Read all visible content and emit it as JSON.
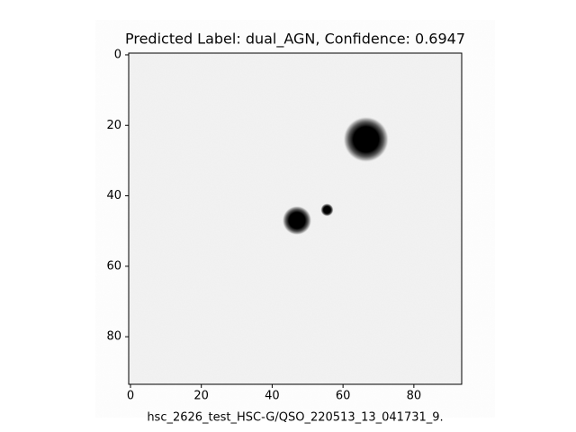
{
  "chart_data": {
    "type": "image",
    "title": "Predicted Label: dual_AGN, Confidence: 0.6947",
    "x_label": "hsc_2626_test_HSC-G/QSO_220513_13_041731_9.",
    "colormap": "gray_r",
    "x": [
      66.5,
      47,
      55.5
    ],
    "y": [
      24,
      47,
      44
    ],
    "sizes": [
      5,
      3.2,
      1.4
    ],
    "xlim": [
      -0.5,
      93.5
    ],
    "ylim": [
      93.5,
      -0.5
    ],
    "xticks": [
      0,
      20,
      40,
      60,
      80
    ],
    "yticks": [
      0,
      20,
      40,
      60,
      80
    ]
  }
}
